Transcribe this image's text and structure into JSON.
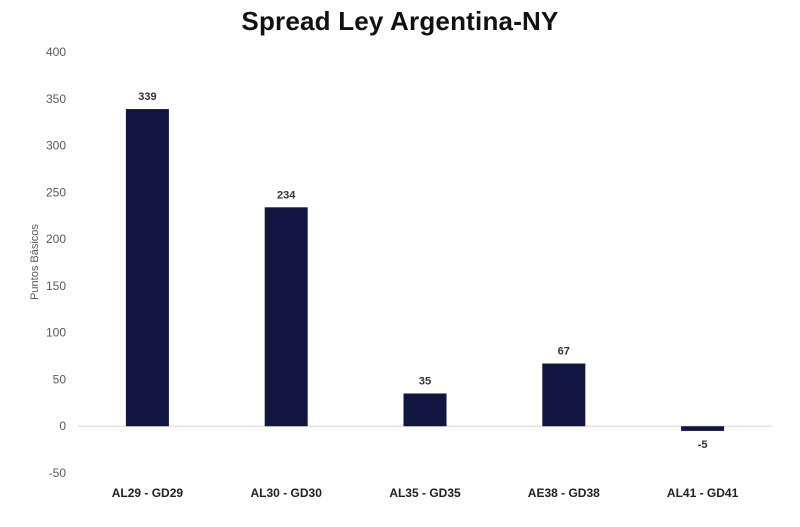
{
  "chart_data": {
    "type": "bar",
    "title": "Spread Ley Argentina-NY",
    "xlabel": "",
    "ylabel": "Puntos Básicos",
    "categories": [
      "AL29 - GD29",
      "AL30 - GD30",
      "AL35 - GD35",
      "AE38 - GD38",
      "AL41 - GD41"
    ],
    "values": [
      339,
      234,
      35,
      67,
      -5
    ],
    "data_labels": [
      "339",
      "234",
      "35",
      "67",
      "-5"
    ],
    "yticks": [
      400,
      350,
      300,
      250,
      200,
      150,
      100,
      50,
      0,
      -50
    ],
    "ylim": [
      -50,
      400
    ],
    "grid": false,
    "legend": "none",
    "bar_color": "#111640",
    "zero_line_color": "#d9d9d9"
  }
}
